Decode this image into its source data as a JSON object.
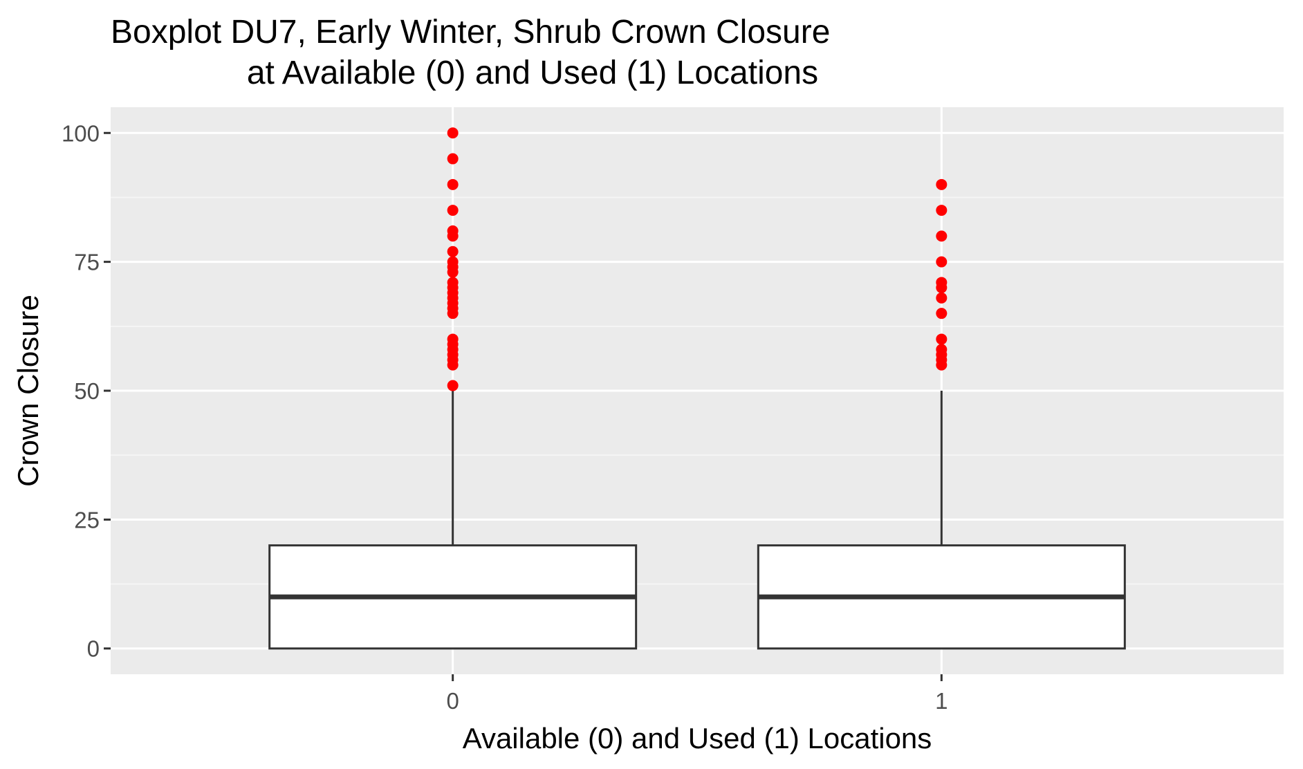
{
  "chart_data": {
    "type": "boxplot",
    "title_lines": [
      "Boxplot DU7, Early Winter, Shrub Crown Closure",
      "at Available (0) and Used (1) Locations"
    ],
    "xlabel": "Available (0) and Used (1) Locations",
    "ylabel": "Crown Closure",
    "categories": [
      "0",
      "1"
    ],
    "ylim": [
      -5,
      105
    ],
    "y_ticks": [
      0,
      25,
      50,
      75,
      100
    ],
    "y_tick_labels": [
      "0",
      "25",
      "50",
      "75",
      "100"
    ],
    "grid": true,
    "boxes": [
      {
        "category": "0",
        "min": 0,
        "q1": 0,
        "median": 10,
        "q3": 20,
        "max": 50,
        "outliers": [
          51,
          55,
          56,
          57,
          58,
          59,
          60,
          65,
          66,
          67,
          68,
          69,
          70,
          71,
          73,
          74,
          75,
          77,
          80,
          81,
          85,
          90,
          95,
          100
        ]
      },
      {
        "category": "1",
        "min": 0,
        "q1": 0,
        "median": 10,
        "q3": 20,
        "max": 50,
        "outliers": [
          55,
          56,
          57,
          58,
          60,
          65,
          68,
          70,
          71,
          75,
          80,
          85,
          90
        ]
      }
    ],
    "colors": {
      "panel_background": "#ebebeb",
      "grid_major": "#ffffff",
      "grid_minor": "#f5f5f5",
      "box_fill": "#ffffff",
      "box_line": "#333333",
      "outlier": "#ff0000",
      "tick_text": "#4d4d4d"
    }
  }
}
